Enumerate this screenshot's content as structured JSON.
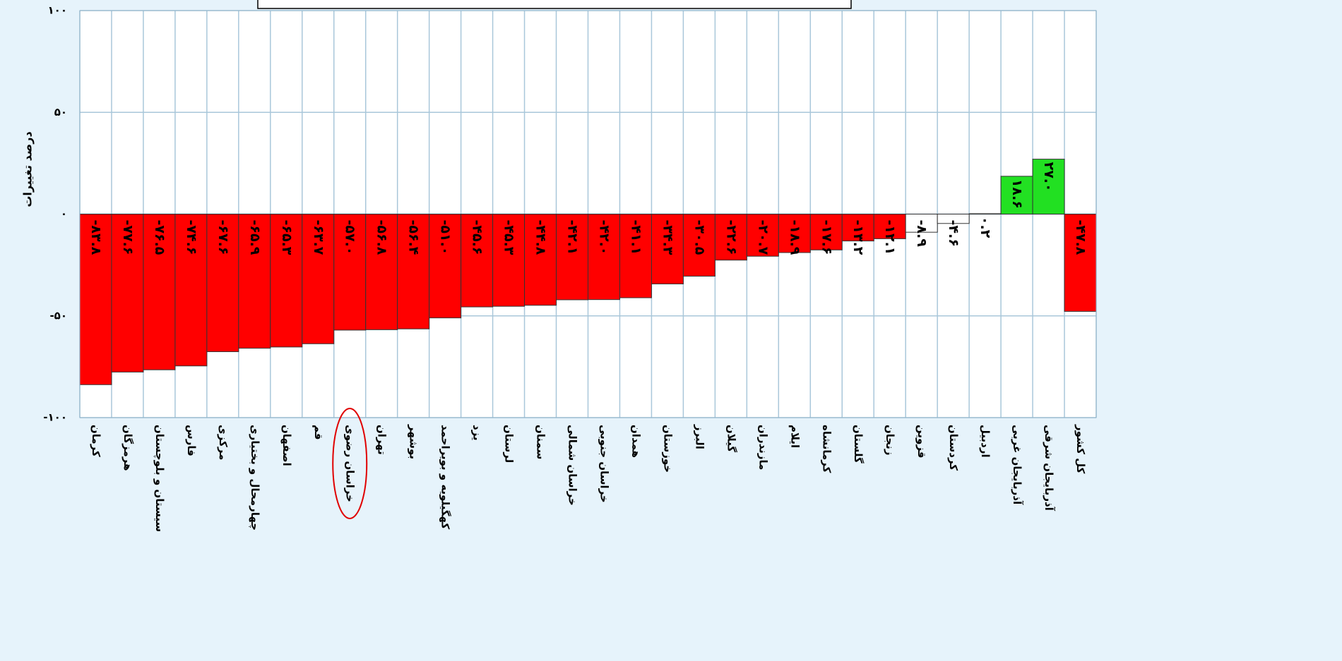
{
  "chart_data": {
    "type": "bar",
    "y_label": "درصد تغییرات",
    "categories": [
      "کرمان",
      "هرمزگان",
      "سیستان و بلوچستان",
      "فارس",
      "مرکزی",
      "چهارمحال و بختیاری",
      "اصفهان",
      "قم",
      "خراسان رضوی",
      "تهران",
      "بوشهر",
      "کهگیلویه و بویراحمد",
      "یزد",
      "لرستان",
      "سمنان",
      "خراسان شمالی",
      "خراسان جنوبی",
      "همدان",
      "خوزستان",
      "البرز",
      "گیلان",
      "مازندران",
      "ایلام",
      "کرمانشاه",
      "گلستان",
      "زنجان",
      "قزوین",
      "کردستان",
      "اردبیل",
      "آذربایجان غربی",
      "آذربایجان شرقی",
      "کل کشور"
    ],
    "values": [
      -83.8,
      -77.6,
      -76.5,
      -74.6,
      -67.6,
      -65.9,
      -65.3,
      -63.7,
      -57.0,
      -56.8,
      -56.4,
      -51.0,
      -45.6,
      -45.3,
      -44.8,
      -42.1,
      -42.0,
      -41.1,
      -34.3,
      -30.5,
      -22.6,
      -20.7,
      -18.9,
      -17.6,
      -13.2,
      -12.1,
      -8.9,
      -4.6,
      0.2,
      18.6,
      27.0,
      -47.8
    ],
    "value_labels": [
      "-۸۳.۸",
      "-۷۷.۶",
      "-۷۶.۵",
      "-۷۴.۶",
      "-۶۷.۶",
      "-۶۵.۹",
      "-۶۵.۳",
      "-۶۳.۷",
      "-۵۷.۰",
      "-۵۶.۸",
      "-۵۶.۴",
      "-۵۱.۰",
      "-۴۵.۶",
      "-۴۵.۳",
      "-۴۴.۸",
      "-۴۲.۱",
      "-۴۲.۰",
      "-۴۱.۱",
      "-۳۴.۳",
      "-۳۰.۵",
      "-۲۲.۶",
      "-۲۰.۷",
      "-۱۸.۹",
      "-۱۷.۶",
      "-۱۳.۲",
      "-۱۲.۱",
      "-۸.۹",
      "-۴.۶",
      "۰.۲",
      "۱۸.۶",
      "۲۷.۰",
      "-۴۷.۸"
    ],
    "colors": [
      "#ff0000",
      "#ff0000",
      "#ff0000",
      "#ff0000",
      "#ff0000",
      "#ff0000",
      "#ff0000",
      "#ff0000",
      "#ff0000",
      "#ff0000",
      "#ff0000",
      "#ff0000",
      "#ff0000",
      "#ff0000",
      "#ff0000",
      "#ff0000",
      "#ff0000",
      "#ff0000",
      "#ff0000",
      "#ff0000",
      "#ff0000",
      "#ff0000",
      "#ff0000",
      "#ff0000",
      "#ff0000",
      "#ff0000",
      "#ffffff",
      "#ffffff",
      "#ffffff",
      "#22e022",
      "#22e022",
      "#ff0000"
    ],
    "ylim": [
      -100,
      100
    ],
    "yticks": [
      {
        "value": -100,
        "label": "-۱۰۰"
      },
      {
        "value": -50,
        "label": "-۵۰"
      },
      {
        "value": 0,
        "label": "۰"
      },
      {
        "value": 50,
        "label": "۵۰"
      },
      {
        "value": 100,
        "label": "۱۰۰"
      }
    ],
    "grid": true
  }
}
